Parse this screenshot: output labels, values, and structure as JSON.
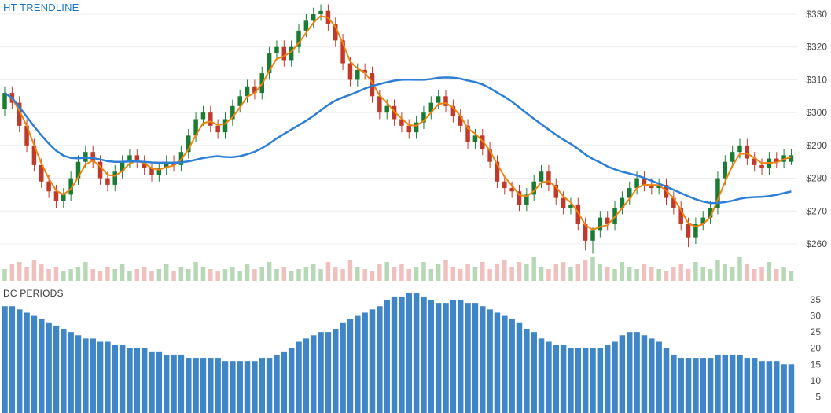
{
  "panels": {
    "price": {
      "title": "HT TRENDLINE"
    },
    "dc": {
      "title": "DC PERIODS"
    }
  },
  "chart_data": [
    {
      "type": "candlestick",
      "title": "HT TRENDLINE",
      "y_axis": {
        "side": "right",
        "labels": [
          "$330",
          "$320",
          "$310",
          "$300",
          "$290",
          "$280",
          "$270",
          "$260"
        ],
        "values": [
          330,
          320,
          310,
          300,
          290,
          280,
          270,
          260
        ],
        "range": [
          260,
          330
        ]
      },
      "grid": true,
      "colors": {
        "up": "#1a7c33",
        "down": "#c0392b",
        "vol_up": "#b7d8b7",
        "vol_down": "#efc0bd"
      },
      "overlays": [
        {
          "name": "HT Trendline",
          "color": "#f0830e",
          "derived": "wma4_of_close",
          "width": 2
        },
        {
          "name": "Moving Average",
          "color": "#2d7fd6",
          "derived": "sma30_of_close",
          "width": 2.5
        }
      ],
      "candles": [
        [
          301,
          308,
          299,
          306
        ],
        [
          306,
          308,
          301,
          303
        ],
        [
          303,
          305,
          294,
          296
        ],
        [
          296,
          298,
          288,
          290
        ],
        [
          290,
          292,
          282,
          284
        ],
        [
          284,
          286,
          277,
          279
        ],
        [
          279,
          281,
          274,
          276
        ],
        [
          276,
          278,
          271,
          273
        ],
        [
          273,
          277,
          271,
          275
        ],
        [
          275,
          282,
          273,
          280
        ],
        [
          280,
          287,
          278,
          285
        ],
        [
          285,
          290,
          283,
          288
        ],
        [
          288,
          290,
          283,
          285
        ],
        [
          285,
          287,
          278,
          280
        ],
        [
          280,
          282,
          276,
          278
        ],
        [
          278,
          284,
          276,
          282
        ],
        [
          282,
          287,
          280,
          285
        ],
        [
          285,
          289,
          283,
          287
        ],
        [
          287,
          289,
          283,
          285
        ],
        [
          285,
          287,
          281,
          283
        ],
        [
          283,
          285,
          279,
          281
        ],
        [
          281,
          285,
          279,
          283
        ],
        [
          283,
          287,
          281,
          285
        ],
        [
          285,
          287,
          282,
          284
        ],
        [
          284,
          290,
          282,
          288
        ],
        [
          288,
          295,
          286,
          293
        ],
        [
          293,
          300,
          291,
          298
        ],
        [
          298,
          302,
          296,
          300
        ],
        [
          300,
          302,
          294,
          296
        ],
        [
          296,
          298,
          292,
          294
        ],
        [
          294,
          300,
          292,
          298
        ],
        [
          298,
          304,
          296,
          302
        ],
        [
          302,
          307,
          300,
          305
        ],
        [
          305,
          310,
          303,
          308
        ],
        [
          308,
          310,
          304,
          306
        ],
        [
          306,
          314,
          304,
          312
        ],
        [
          312,
          320,
          310,
          318
        ],
        [
          318,
          322,
          316,
          320
        ],
        [
          320,
          322,
          314,
          316
        ],
        [
          316,
          322,
          314,
          320
        ],
        [
          320,
          327,
          318,
          325
        ],
        [
          325,
          330,
          323,
          328
        ],
        [
          328,
          332,
          326,
          330
        ],
        [
          330,
          333,
          328,
          331
        ],
        [
          331,
          333,
          325,
          327
        ],
        [
          327,
          329,
          320,
          322
        ],
        [
          322,
          324,
          313,
          315
        ],
        [
          315,
          317,
          308,
          310
        ],
        [
          310,
          315,
          308,
          313
        ],
        [
          313,
          315,
          310,
          312
        ],
        [
          312,
          314,
          303,
          305
        ],
        [
          305,
          307,
          298,
          300
        ],
        [
          300,
          304,
          298,
          302
        ],
        [
          302,
          304,
          296,
          298
        ],
        [
          298,
          300,
          294,
          296
        ],
        [
          296,
          298,
          292,
          294
        ],
        [
          294,
          299,
          292,
          297
        ],
        [
          297,
          302,
          295,
          300
        ],
        [
          300,
          305,
          298,
          303
        ],
        [
          303,
          307,
          301,
          305
        ],
        [
          305,
          307,
          300,
          302
        ],
        [
          302,
          304,
          297,
          299
        ],
        [
          299,
          301,
          294,
          296
        ],
        [
          296,
          298,
          289,
          291
        ],
        [
          291,
          295,
          289,
          293
        ],
        [
          293,
          295,
          287,
          289
        ],
        [
          289,
          291,
          283,
          285
        ],
        [
          285,
          287,
          277,
          279
        ],
        [
          279,
          281,
          275,
          277
        ],
        [
          277,
          279,
          274,
          276
        ],
        [
          276,
          278,
          270,
          272
        ],
        [
          272,
          277,
          270,
          275
        ],
        [
          275,
          281,
          273,
          279
        ],
        [
          279,
          284,
          277,
          282
        ],
        [
          282,
          284,
          276,
          278
        ],
        [
          278,
          280,
          272,
          274
        ],
        [
          274,
          276,
          269,
          271
        ],
        [
          271,
          274,
          269,
          272
        ],
        [
          272,
          274,
          264,
          266
        ],
        [
          266,
          268,
          258,
          261
        ],
        [
          261,
          265,
          257,
          264
        ],
        [
          264,
          270,
          262,
          268
        ],
        [
          268,
          270,
          264,
          266
        ],
        [
          266,
          273,
          264,
          271
        ],
        [
          271,
          276,
          269,
          274
        ],
        [
          274,
          279,
          272,
          277
        ],
        [
          277,
          282,
          275,
          280
        ],
        [
          280,
          282,
          276,
          278
        ],
        [
          278,
          280,
          275,
          277
        ],
        [
          277,
          280,
          275,
          278
        ],
        [
          278,
          280,
          272,
          274
        ],
        [
          274,
          276,
          269,
          271
        ],
        [
          271,
          273,
          264,
          266
        ],
        [
          266,
          268,
          259,
          262
        ],
        [
          262,
          268,
          260,
          266
        ],
        [
          266,
          270,
          264,
          268
        ],
        [
          268,
          273,
          266,
          271
        ],
        [
          271,
          282,
          269,
          280
        ],
        [
          280,
          287,
          278,
          285
        ],
        [
          285,
          290,
          283,
          288
        ],
        [
          288,
          292,
          286,
          290
        ],
        [
          290,
          292,
          284,
          286
        ],
        [
          286,
          288,
          282,
          284
        ],
        [
          284,
          286,
          281,
          283
        ],
        [
          283,
          288,
          281,
          286
        ],
        [
          286,
          288,
          283,
          285
        ],
        [
          285,
          289,
          283,
          287
        ],
        [
          285,
          289,
          284,
          287
        ]
      ],
      "volumes": [
        5,
        7,
        8,
        6,
        9,
        7,
        5,
        6,
        4,
        5,
        6,
        8,
        5,
        4,
        6,
        5,
        7,
        4,
        5,
        6,
        4,
        5,
        7,
        4,
        6,
        5,
        8,
        6,
        5,
        4,
        5,
        6,
        4,
        7,
        5,
        6,
        8,
        5,
        6,
        4,
        5,
        6,
        7,
        5,
        8,
        6,
        5,
        9,
        6,
        5,
        4,
        7,
        8,
        6,
        7,
        5,
        6,
        8,
        5,
        7,
        9,
        6,
        5,
        7,
        6,
        8,
        5,
        7,
        9,
        6,
        8,
        7,
        10,
        6,
        5,
        7,
        8,
        6,
        7,
        9,
        10,
        7,
        6,
        5,
        8,
        6,
        5,
        7,
        6,
        5,
        4,
        6,
        7,
        5,
        8,
        6,
        5,
        9,
        7,
        6,
        10,
        7,
        5,
        6,
        8,
        5,
        6,
        4
      ]
    },
    {
      "type": "bar",
      "title": "DC PERIODS",
      "y_axis": {
        "side": "right",
        "labels": [
          "35",
          "30",
          "25",
          "20",
          "15",
          "10",
          "5"
        ],
        "values": [
          35,
          30,
          25,
          20,
          15,
          10,
          5
        ],
        "range": [
          0,
          35
        ]
      },
      "color": "#3e86c7",
      "values": [
        33,
        33,
        32,
        31,
        30,
        29,
        28,
        27,
        26,
        25,
        24,
        23,
        23,
        22,
        22,
        21,
        21,
        20,
        20,
        20,
        19,
        19,
        18,
        18,
        18,
        17,
        17,
        17,
        17,
        17,
        16,
        16,
        16,
        16,
        16,
        17,
        17,
        18,
        19,
        20,
        22,
        23,
        24,
        25,
        25,
        26,
        28,
        29,
        30,
        31,
        32,
        33,
        35,
        36,
        36,
        37,
        37,
        36,
        35,
        34,
        34,
        35,
        35,
        34,
        34,
        33,
        32,
        31,
        30,
        29,
        28,
        26,
        25,
        23,
        22,
        21,
        21,
        20,
        20,
        20,
        20,
        20,
        21,
        22,
        24,
        25,
        25,
        24,
        23,
        22,
        20,
        18,
        17,
        17,
        17,
        17,
        17,
        18,
        18,
        18,
        18,
        17,
        17,
        16,
        16,
        16,
        15,
        15
      ]
    }
  ]
}
